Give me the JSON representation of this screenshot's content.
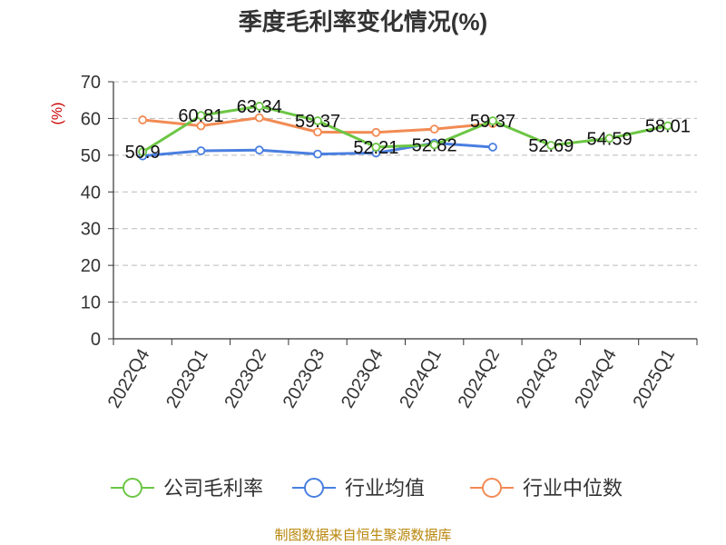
{
  "chart_data": {
    "type": "line",
    "title": "季度毛利率变化情况(%)",
    "ylabel": "(%)",
    "ylim": [
      0,
      70
    ],
    "yticks": [
      0,
      10,
      20,
      30,
      40,
      50,
      60,
      70
    ],
    "grid": true,
    "legend_position": "bottom",
    "categories": [
      "2022Q4",
      "2023Q1",
      "2023Q2",
      "2023Q3",
      "2023Q4",
      "2024Q1",
      "2024Q2",
      "2024Q3",
      "2024Q4",
      "2025Q1"
    ],
    "series": [
      {
        "name": "公司毛利率",
        "color": "#6cc644",
        "values": [
          50.9,
          60.81,
          63.34,
          59.37,
          52.21,
          52.82,
          59.37,
          52.69,
          54.59,
          58.01
        ],
        "labels": [
          "50.9",
          "60.81",
          "63.34",
          "59.37",
          "52.21",
          "52.82",
          "59.37",
          "52.69",
          "54.59",
          "58.01"
        ]
      },
      {
        "name": "行业均值",
        "color": "#4a7fe0",
        "values": [
          49.8,
          51.2,
          51.4,
          50.3,
          50.6,
          53.3,
          52.2,
          null,
          null,
          null
        ]
      },
      {
        "name": "行业中位数",
        "color": "#f28b54",
        "values": [
          59.6,
          58.0,
          60.2,
          56.3,
          56.2,
          57.1,
          58.6,
          null,
          null,
          null
        ]
      }
    ]
  },
  "footer": {
    "source": "制图数据来自恒生聚源数据库"
  }
}
